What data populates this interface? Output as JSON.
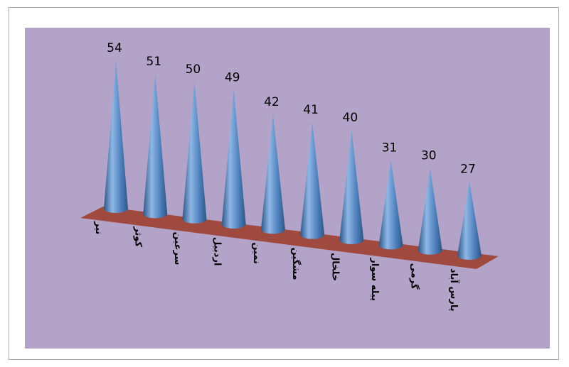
{
  "chart_data": {
    "type": "bar",
    "subtype": "3d-cone",
    "categories": [
      "نیر",
      "کوثر",
      "سرعین",
      "اردبیل",
      "نمین",
      "مشگین",
      "خلخال",
      "پیله سوار",
      "گرمی",
      "پارس آباد"
    ],
    "values": [
      54,
      51,
      50,
      49,
      42,
      41,
      40,
      31,
      30,
      27
    ],
    "title": "",
    "xlabel": "",
    "ylabel": "",
    "ylim": [
      0,
      54
    ],
    "grid": false,
    "legend": "none",
    "data_labels": true
  },
  "colors": {
    "plot_background": "#b3a3c8",
    "floor": "#a0493f",
    "cone_light": "#8fb7e6",
    "cone_mid": "#4f81bd",
    "cone_dark": "#2d5585",
    "label_text": "#000000"
  }
}
